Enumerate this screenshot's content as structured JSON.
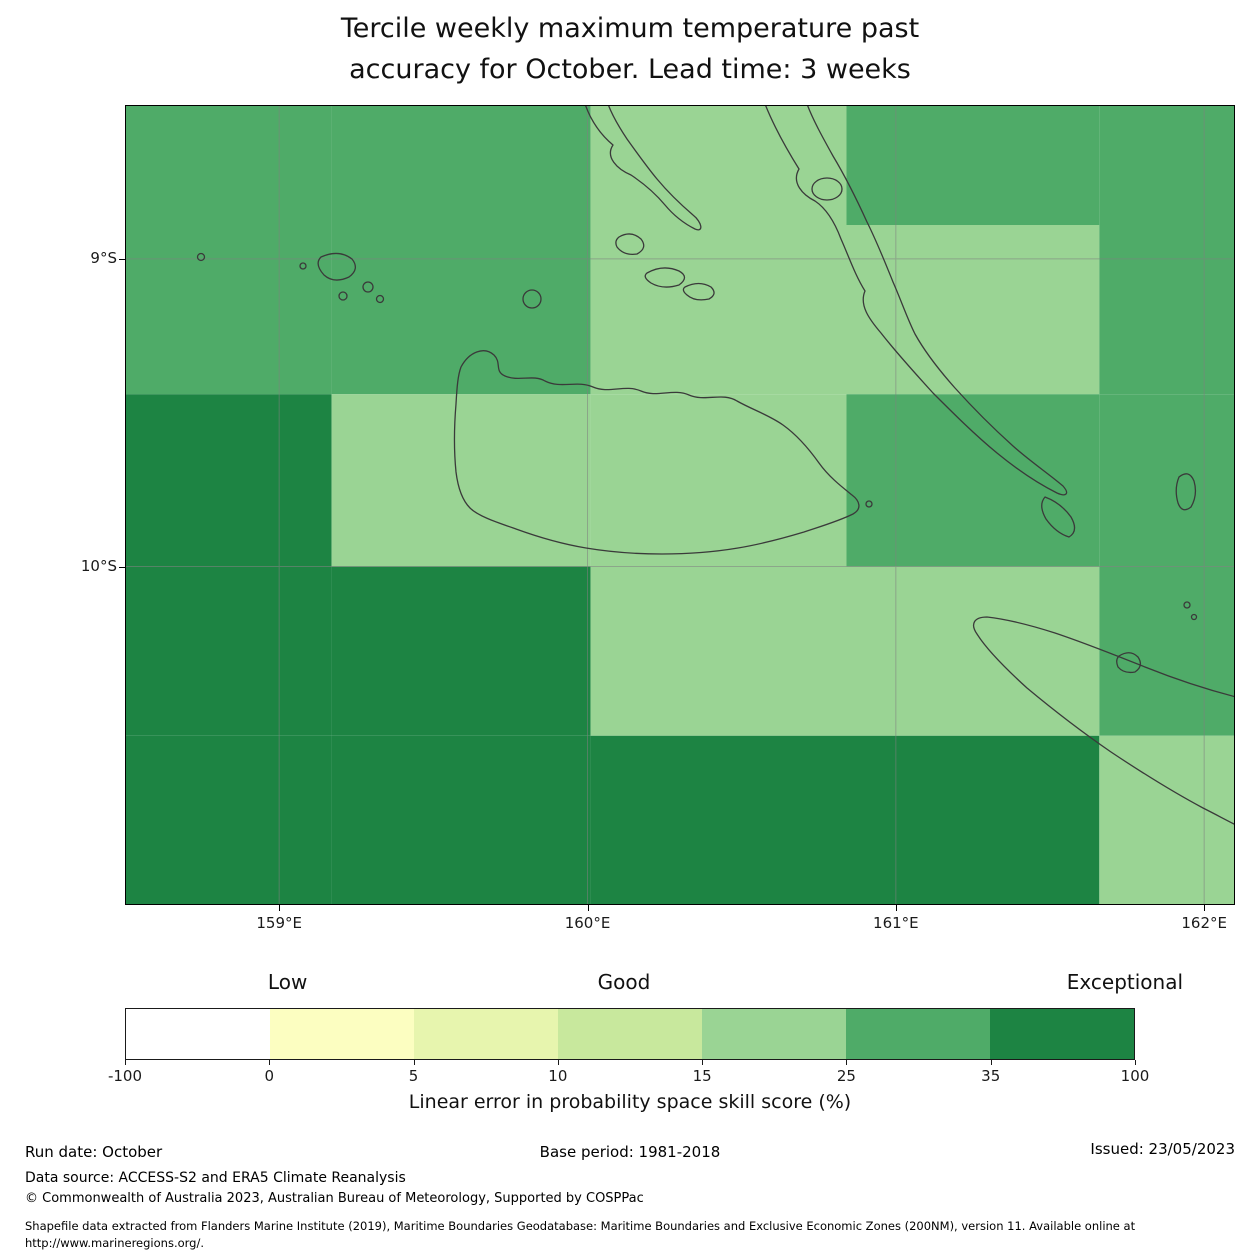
{
  "title": {
    "line1": "Tercile weekly maximum temperature past",
    "line2": "accuracy for October. Lead time: 3 weeks"
  },
  "chart_data": {
    "type": "heatmap",
    "title": "Tercile weekly maximum temperature past accuracy for October. Lead time: 3 weeks",
    "lon_range": [
      158.5,
      162.1
    ],
    "lat_range": [
      -11.1,
      -8.5
    ],
    "x_ticks": [
      {
        "label": "159°E",
        "lon": 159
      },
      {
        "label": "160°E",
        "lon": 160
      },
      {
        "label": "161°E",
        "lon": 161
      },
      {
        "label": "162°E",
        "lon": 162
      }
    ],
    "y_ticks": [
      {
        "label": "9°S",
        "lat": -9
      },
      {
        "label": "10°S",
        "lat": -10
      }
    ],
    "grid_lons": [
      159,
      160,
      161,
      162
    ],
    "grid_lats": [
      -9,
      -10
    ],
    "units": "Linear error in probability space skill score (%)",
    "bin_colors": {
      "15-25": "#9ad494",
      "25-35": "#4fab68",
      "35-100": "#1d8443"
    },
    "grid": {
      "col_edges_lon": [
        158.5,
        159.17,
        160.01,
        160.84,
        161.66,
        162.1
      ],
      "row_edges_lat": [
        -8.5,
        -8.89,
        -9.44,
        -10.0,
        -10.55,
        -11.1
      ],
      "values_bin": [
        [
          "25-35",
          "25-35",
          "15-25",
          "25-35",
          "25-35"
        ],
        [
          "25-35",
          "25-35",
          "15-25",
          "15-25",
          "25-35"
        ],
        [
          "35-100",
          "15-25",
          "15-25",
          "25-35",
          "25-35"
        ],
        [
          "35-100",
          "35-100",
          "15-25",
          "15-25",
          "25-35"
        ],
        [
          "35-100",
          "35-100",
          "35-100",
          "35-100",
          "15-25"
        ]
      ]
    }
  },
  "colorbar": {
    "categories": [
      {
        "label": "Low",
        "f": 0.161
      },
      {
        "label": "Good",
        "f": 0.494
      },
      {
        "label": "Exceptional",
        "f": 0.99
      }
    ],
    "ticks": [
      "-100",
      "0",
      "5",
      "10",
      "15",
      "25",
      "35",
      "100"
    ],
    "colors": [
      "#ffffff",
      "#fcfec1",
      "#e7f5ae",
      "#c8e89d",
      "#9ad494",
      "#4fab68",
      "#1d8443"
    ],
    "label": "Linear error in probability space skill score (%)"
  },
  "footer": {
    "run_date": "Run date: October",
    "base_period": "Base period: 1981-2018",
    "issued": "Issued: 23/05/2023",
    "data_source": "Data source: ACCESS-S2 and ERA5 Climate Reanalysis",
    "copyright": "© Commonwealth of Australia 2023, Australian Bureau of Meteorology, Supported by COSPPac",
    "shapefile_note_line1": "Shapefile data extracted from Flanders Marine Institute (2019), Maritime Boundaries Geodatabase: Maritime Boundaries and Exclusive Economic Zones (200NM), version 11. Available online at",
    "shapefile_note_line2": "http://www.marineregions.org/."
  }
}
